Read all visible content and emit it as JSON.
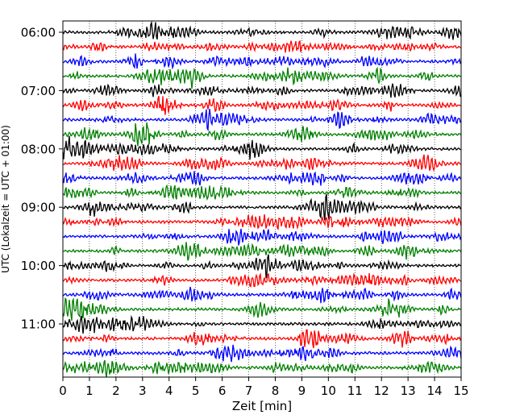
{
  "chart_data": {
    "type": "line",
    "subtype": "helicorder",
    "xlabel": "Zeit  [min]",
    "ylabel": "UTC (Lokalzeit = UTC + 01:00)",
    "xlim": [
      0,
      15
    ],
    "x_ticks": [
      "0",
      "1",
      "2",
      "3",
      "4",
      "5",
      "6",
      "7",
      "8",
      "9",
      "10",
      "11",
      "12",
      "13",
      "14",
      "15"
    ],
    "y_tick_labels": [
      "06:00",
      "07:00",
      "08:00",
      "09:00",
      "10:00",
      "11:00"
    ],
    "y_tick_trace_index": [
      0,
      4,
      8,
      12,
      16,
      20
    ],
    "grid": "vertical dotted lines at each minute",
    "trace_interval_minutes": 15,
    "trace_start_times": [
      "06:00",
      "06:15",
      "06:30",
      "06:45",
      "07:00",
      "07:15",
      "07:30",
      "07:45",
      "08:00",
      "08:15",
      "08:30",
      "08:45",
      "09:00",
      "09:15",
      "09:30",
      "09:45",
      "10:00",
      "10:15",
      "10:30",
      "10:45",
      "11:00",
      "11:15",
      "11:30",
      "11:45"
    ],
    "trace_colors": [
      "#000000",
      "#ff0000",
      "#0000ff",
      "#008000"
    ]
  }
}
